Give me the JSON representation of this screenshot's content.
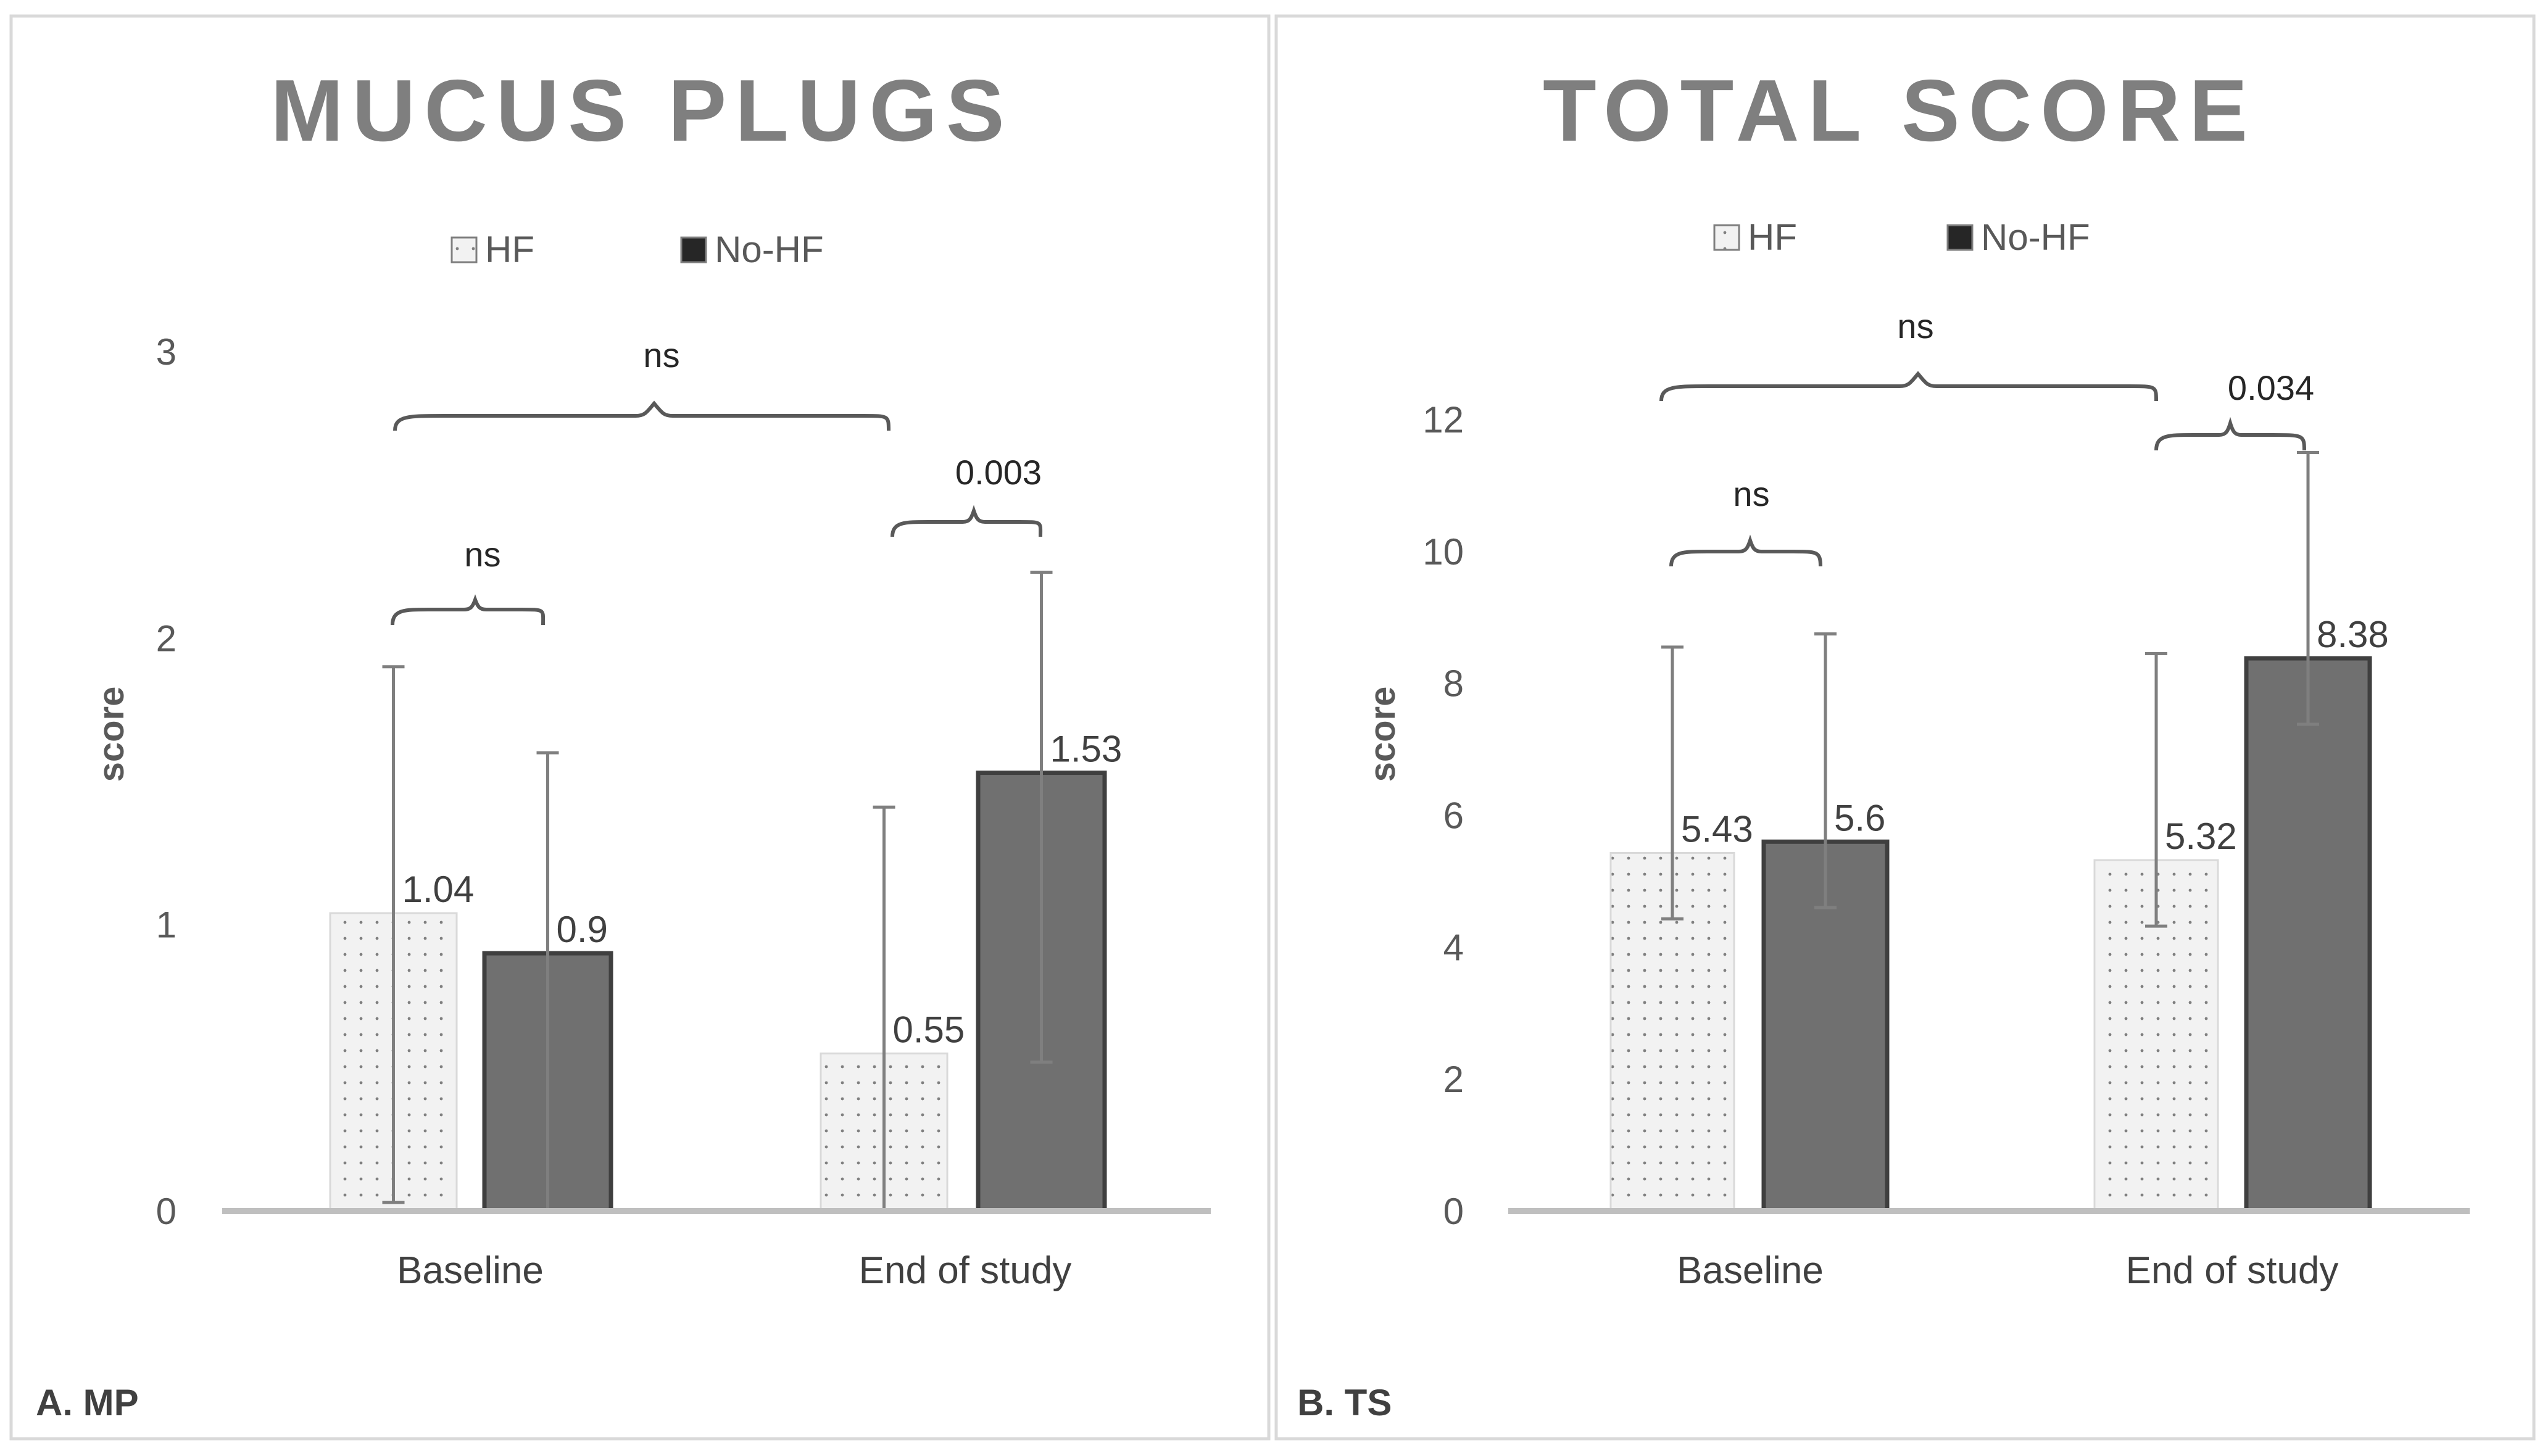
{
  "chart_data": [
    {
      "type": "bar",
      "title": "MUCUS PLUGS",
      "panel_label": "A. MP",
      "ylabel": "score",
      "ylim": [
        0,
        3
      ],
      "yticks": [
        "0",
        "1",
        "2",
        "3"
      ],
      "categories": [
        "Baseline",
        "End of study"
      ],
      "legend_position": "top",
      "series": [
        {
          "name": "HF",
          "values": [
            1.04,
            0.55
          ],
          "labels": [
            "1.04",
            "0.55"
          ],
          "err_low": [
            0.03,
            0.0
          ],
          "err_high": [
            1.9,
            1.41
          ],
          "color": "#f2f2f2",
          "pattern": "dotted"
        },
        {
          "name": "No-HF",
          "values": [
            0.9,
            1.53
          ],
          "labels": [
            "0.9",
            "1.53"
          ],
          "err_low": [
            0.0,
            0.52
          ],
          "err_high": [
            1.6,
            2.23
          ],
          "color": "#707070"
        }
      ],
      "comparisons": [
        {
          "label": "ns",
          "scope": "Baseline HF vs No-HF"
        },
        {
          "label": "0.003",
          "scope": "End of study HF vs No-HF"
        },
        {
          "label": "ns",
          "scope": "Baseline vs End of study (HF)"
        }
      ]
    },
    {
      "type": "bar",
      "title": "TOTAL SCORE",
      "panel_label": "B. TS",
      "ylabel": "score",
      "ylim": [
        0,
        12
      ],
      "yticks": [
        "0",
        "2",
        "4",
        "6",
        "8",
        "10",
        "12"
      ],
      "categories": [
        "Baseline",
        "End of study"
      ],
      "legend_position": "top",
      "series": [
        {
          "name": "HF",
          "values": [
            5.43,
            5.32
          ],
          "labels": [
            "5.43",
            "5.32"
          ],
          "err_low": [
            4.43,
            4.32
          ],
          "err_high": [
            8.55,
            8.45
          ],
          "color": "#f2f2f2",
          "pattern": "dotted"
        },
        {
          "name": "No-HF",
          "values": [
            5.6,
            8.38
          ],
          "labels": [
            "5.6",
            "8.38"
          ],
          "err_low": [
            4.6,
            7.38
          ],
          "err_high": [
            8.75,
            11.5
          ],
          "color": "#707070"
        }
      ],
      "comparisons": [
        {
          "label": "ns",
          "scope": "Baseline HF vs No-HF"
        },
        {
          "label": "0.034",
          "scope": "End of study HF vs No-HF"
        },
        {
          "label": "ns",
          "scope": "Baseline vs End of study (HF)"
        }
      ]
    }
  ],
  "colors": {
    "hf_fill": "#f2f2f2",
    "hf_dot": "#7f7f7f",
    "nohf_fill": "#707070",
    "nohf_stroke": "#3f3f3f",
    "axis": "#bfbfbf",
    "errorbar": "#7f7f7f",
    "bracket": "#595959",
    "title": "#7f7f7f"
  }
}
